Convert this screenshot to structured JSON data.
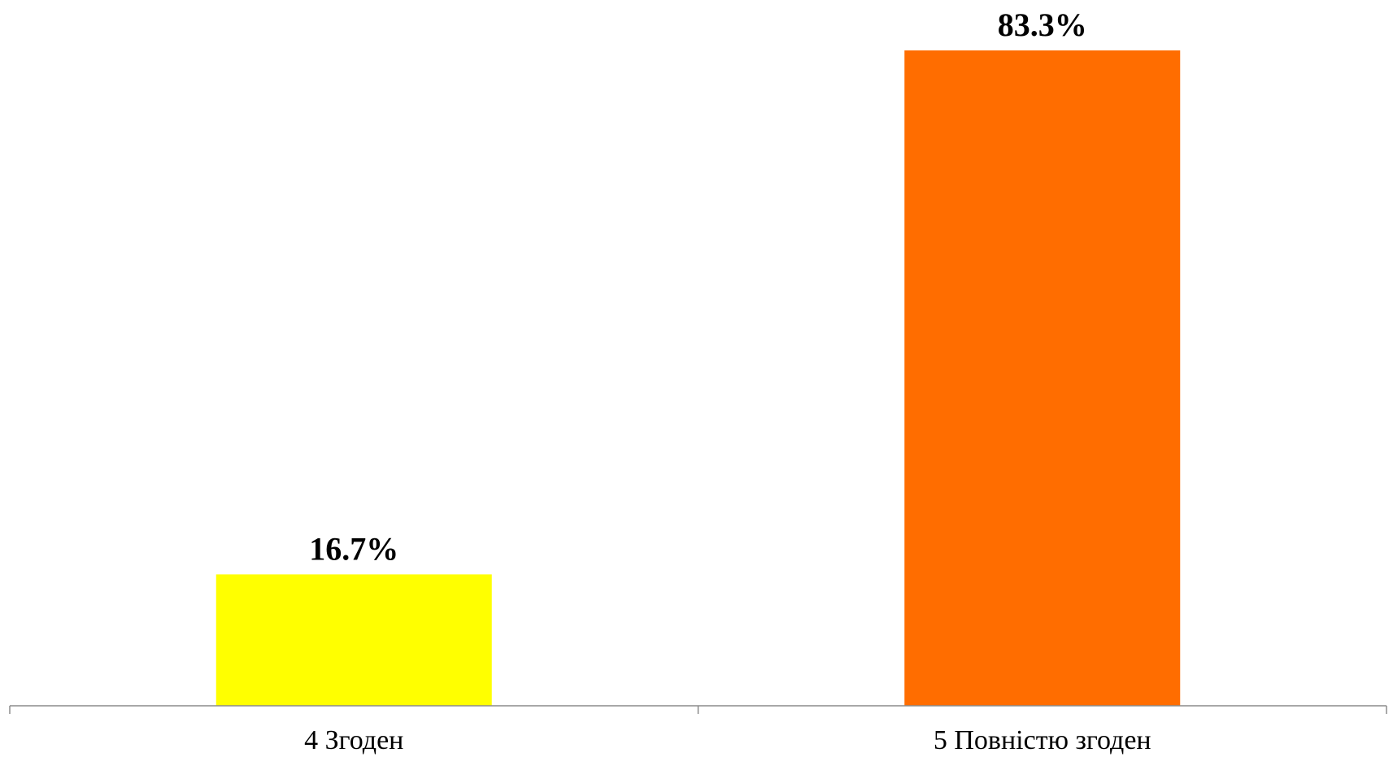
{
  "chart_data": {
    "type": "bar",
    "categories": [
      "4 Згоден",
      "5 Повністю згоден"
    ],
    "values": [
      16.7,
      83.3
    ],
    "data_labels": [
      "16.7%",
      "83.3%"
    ],
    "colors": [
      "#FFFF00",
      "#FF6D00"
    ],
    "title": "",
    "xlabel": "",
    "ylabel": "",
    "ylim": [
      0,
      83.3
    ],
    "grid": false,
    "legend": "none",
    "axis_color": "#8C8C8C"
  }
}
